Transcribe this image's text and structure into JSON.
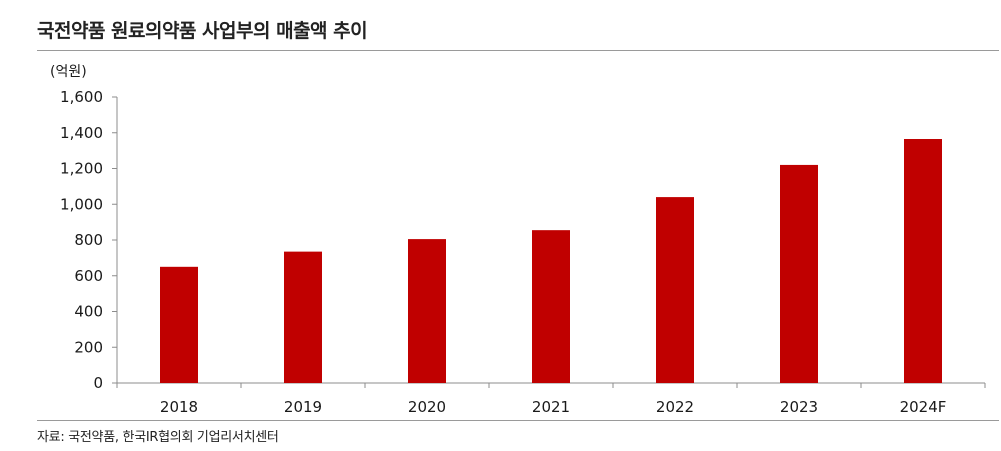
{
  "chart_data": {
    "type": "bar",
    "title": "국전약품 원료의약품 사업부의 매출액 추이",
    "unit_label": "(억원)",
    "categories": [
      "2018",
      "2019",
      "2020",
      "2021",
      "2022",
      "2023",
      "2024F"
    ],
    "values": [
      650,
      735,
      805,
      855,
      1040,
      1220,
      1365
    ],
    "ylim": [
      0,
      1600
    ],
    "yticks": [
      0,
      200,
      400,
      600,
      800,
      1000,
      1200,
      1400,
      1600
    ],
    "ytick_labels": [
      "0",
      "200",
      "400",
      "600",
      "800",
      "1,000",
      "1,200",
      "1,400",
      "1,600"
    ],
    "xlabel": "",
    "ylabel": "",
    "grid": false,
    "legend": "none",
    "bar_color": "#c00000",
    "source": "자료: 국전약품, 한국IR협의회 기업리서치센터"
  }
}
